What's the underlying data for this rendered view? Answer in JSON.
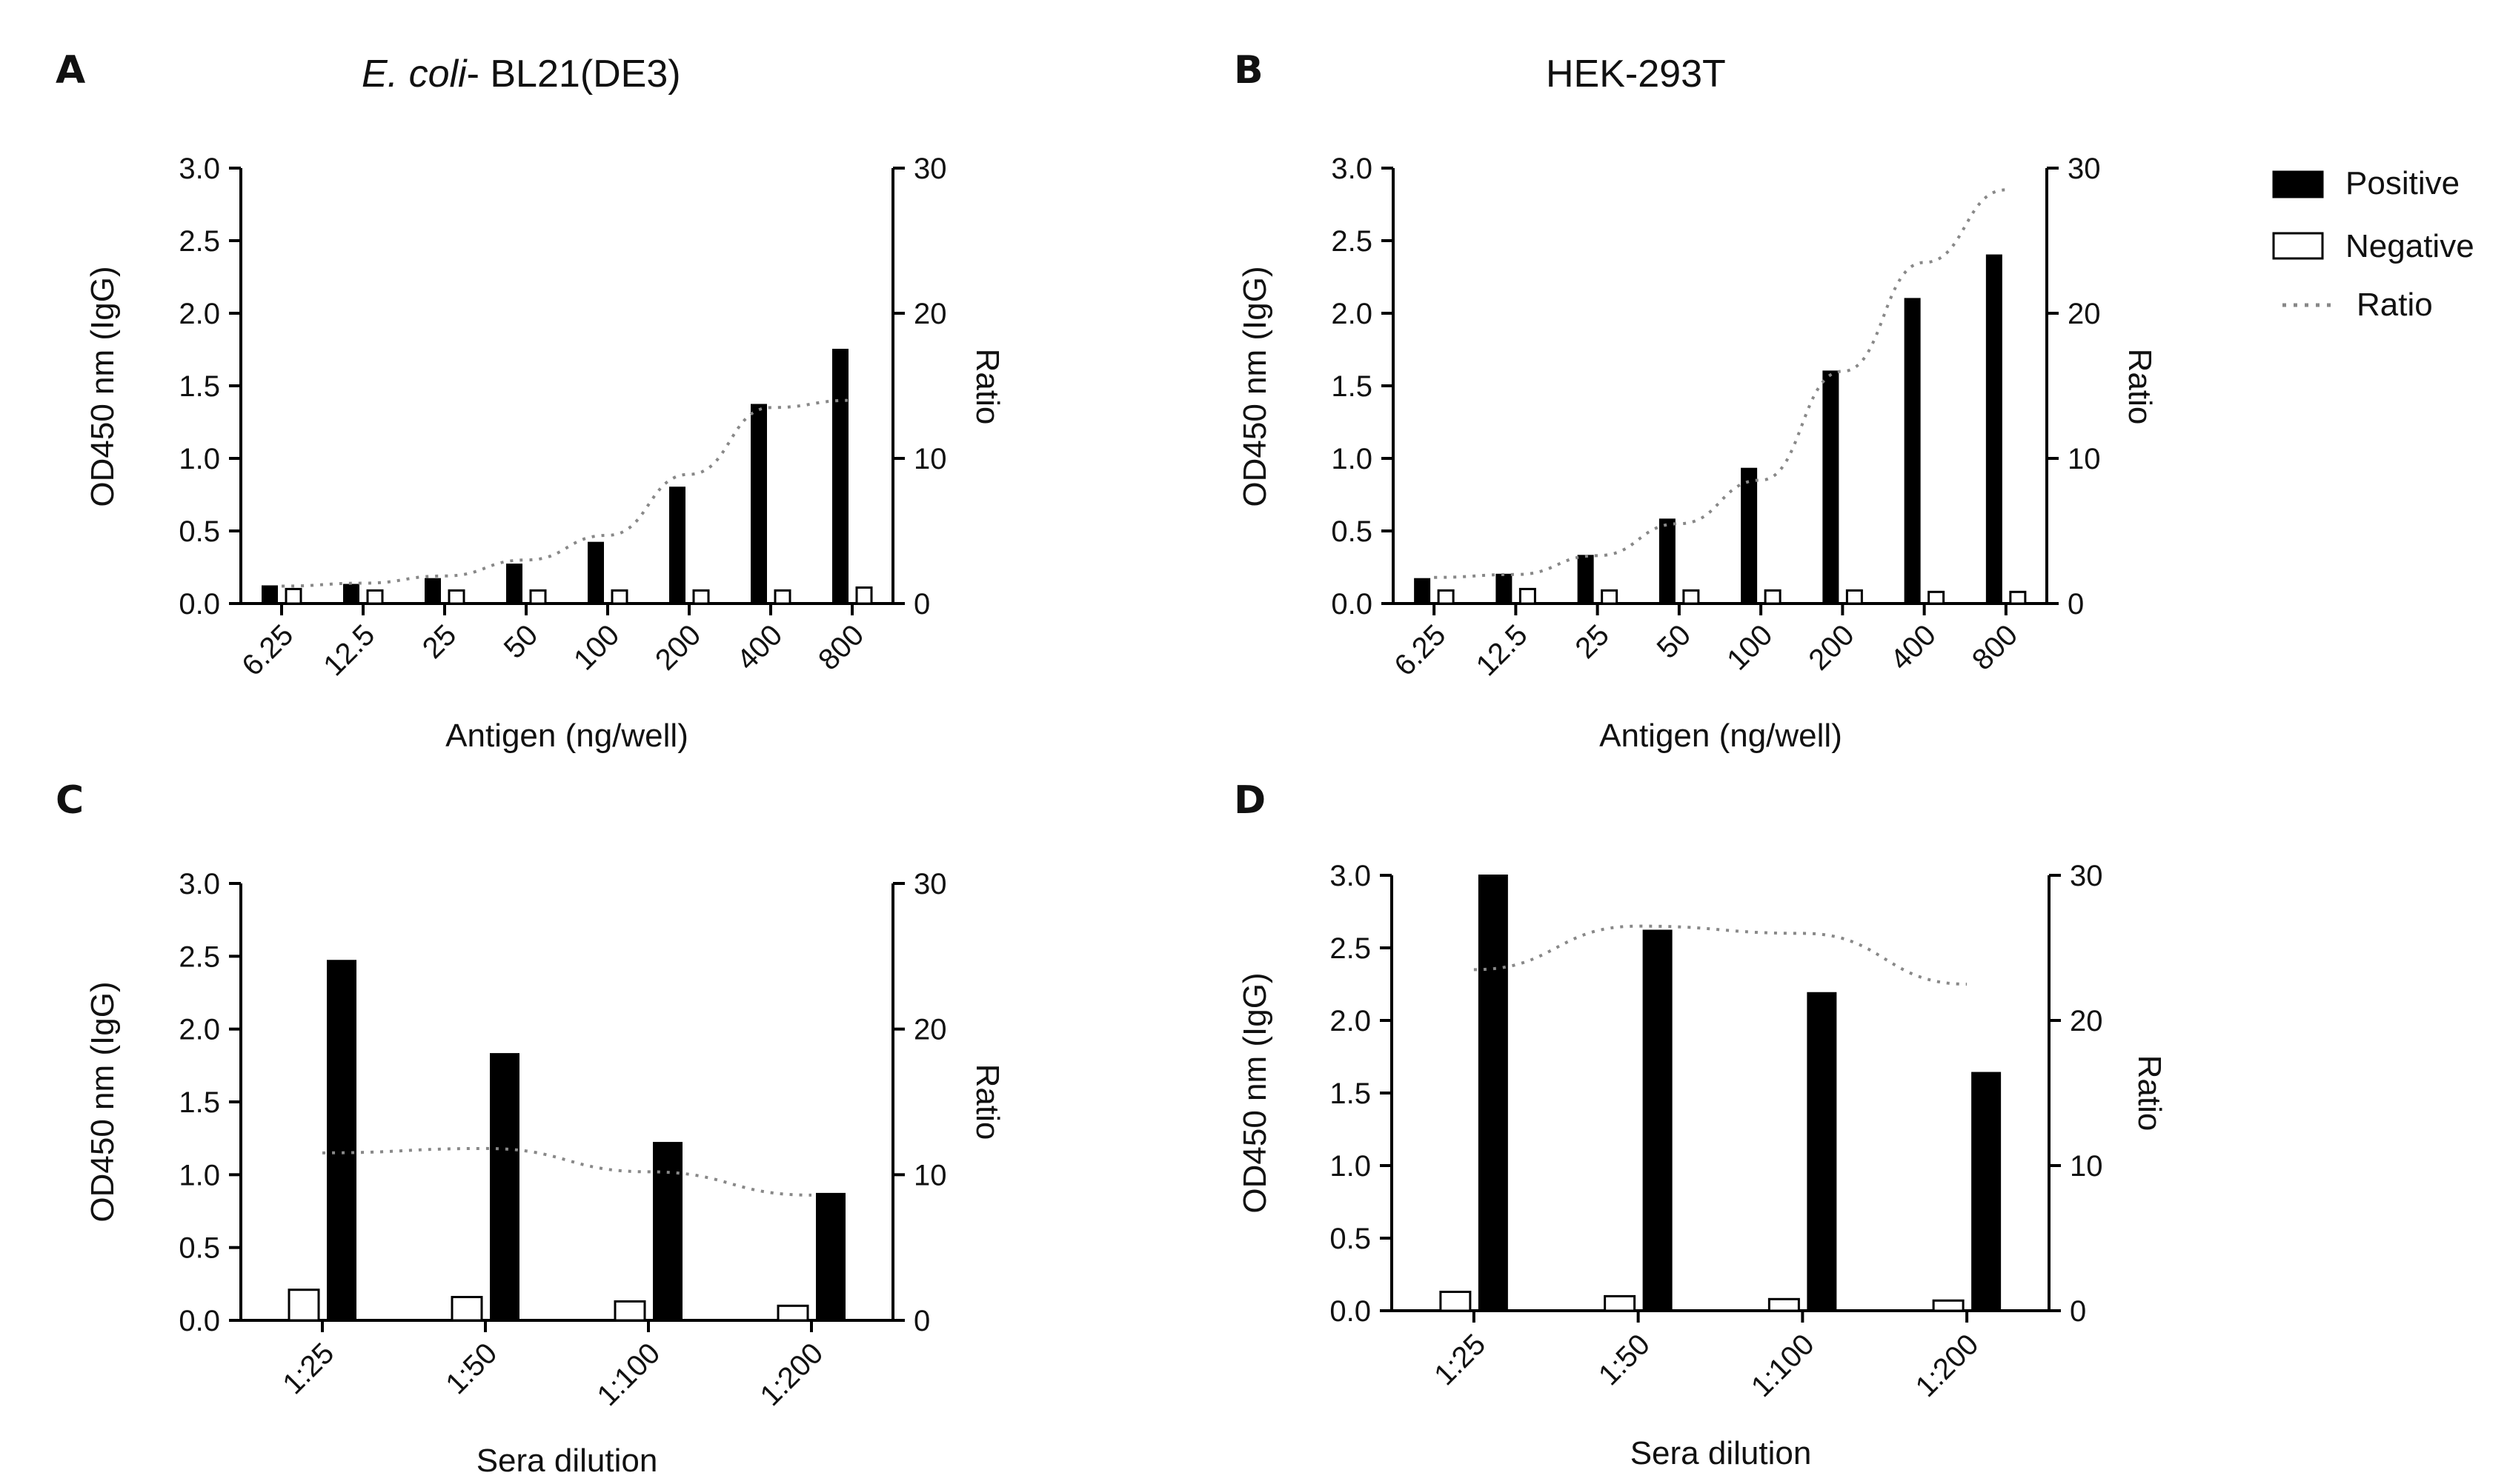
{
  "legend": {
    "positive": "Positive",
    "negative": "Negative",
    "ratio": "Ratio",
    "colors": {
      "positive": "#000000",
      "negative": "#ffffff",
      "ratio": "#888888"
    }
  },
  "chart_data": [
    {
      "panel": "A",
      "title_italic": "E. coli",
      "title": "- BL21(DE3)",
      "type": "bar",
      "xlabel": "Antigen (ng/well)",
      "ylabel": "OD450 nm (IgG)",
      "y2label": "Ratio",
      "ylim": [
        0,
        3.0
      ],
      "y2lim": [
        0,
        30
      ],
      "yticks": [
        "0.0",
        "0.5",
        "1.0",
        "1.5",
        "2.0",
        "2.5",
        "3.0"
      ],
      "y2ticks": [
        "0",
        "10",
        "20",
        "30"
      ],
      "categories": [
        "6.25",
        "12.5",
        "25",
        "50",
        "100",
        "200",
        "400",
        "800"
      ],
      "series": [
        {
          "name": "Positive",
          "values": [
            0.12,
            0.13,
            0.17,
            0.27,
            0.42,
            0.8,
            1.37,
            1.75
          ]
        },
        {
          "name": "Negative",
          "values": [
            0.1,
            0.09,
            0.09,
            0.09,
            0.09,
            0.09,
            0.09,
            0.11
          ]
        },
        {
          "name": "Ratio",
          "axis": "right",
          "values": [
            1.2,
            1.4,
            1.9,
            3.0,
            4.7,
            8.9,
            13.5,
            14.0
          ]
        }
      ],
      "negative_first": false
    },
    {
      "panel": "B",
      "title": "HEK-293T",
      "type": "bar",
      "xlabel": "Antigen (ng/well)",
      "ylabel": "OD450 nm (IgG)",
      "y2label": "Ratio",
      "ylim": [
        0,
        3.0
      ],
      "y2lim": [
        0,
        30
      ],
      "yticks": [
        "0.0",
        "0.5",
        "1.0",
        "1.5",
        "2.0",
        "2.5",
        "3.0"
      ],
      "y2ticks": [
        "0",
        "10",
        "20",
        "30"
      ],
      "categories": [
        "6.25",
        "12.5",
        "25",
        "50",
        "100",
        "200",
        "400",
        "800"
      ],
      "series": [
        {
          "name": "Positive",
          "values": [
            0.17,
            0.2,
            0.33,
            0.58,
            0.93,
            1.6,
            2.1,
            2.4
          ]
        },
        {
          "name": "Negative",
          "values": [
            0.09,
            0.1,
            0.09,
            0.09,
            0.09,
            0.09,
            0.08,
            0.08
          ]
        },
        {
          "name": "Ratio",
          "axis": "right",
          "values": [
            1.8,
            2.0,
            3.3,
            5.5,
            8.5,
            16.0,
            23.5,
            28.5
          ]
        }
      ],
      "negative_first": false
    },
    {
      "panel": "C",
      "title": "",
      "type": "bar",
      "xlabel": "Sera dilution",
      "ylabel": "OD450 nm (IgG)",
      "y2label": "Ratio",
      "ylim": [
        0,
        3.0
      ],
      "y2lim": [
        0,
        30
      ],
      "yticks": [
        "0.0",
        "0.5",
        "1.0",
        "1.5",
        "2.0",
        "2.5",
        "3.0"
      ],
      "y2ticks": [
        "0",
        "10",
        "20",
        "30"
      ],
      "categories": [
        "1:25",
        "1:50",
        "1:100",
        "1:200"
      ],
      "series": [
        {
          "name": "Positive",
          "values": [
            2.47,
            1.83,
            1.22,
            0.87
          ]
        },
        {
          "name": "Negative",
          "values": [
            0.21,
            0.16,
            0.13,
            0.1
          ]
        },
        {
          "name": "Ratio",
          "axis": "right",
          "values": [
            11.5,
            11.8,
            10.2,
            8.6
          ]
        }
      ],
      "negative_first": true
    },
    {
      "panel": "D",
      "title": "",
      "type": "bar",
      "xlabel": "Sera dilution",
      "ylabel": "OD450 nm (IgG)",
      "y2label": "Ratio",
      "ylim": [
        0,
        3.0
      ],
      "y2lim": [
        0,
        30
      ],
      "yticks": [
        "0.0",
        "0.5",
        "1.0",
        "1.5",
        "2.0",
        "2.5",
        "3.0"
      ],
      "y2ticks": [
        "0",
        "10",
        "20",
        "30"
      ],
      "categories": [
        "1:25",
        "1:50",
        "1:100",
        "1:200"
      ],
      "series": [
        {
          "name": "Positive",
          "values": [
            3.0,
            2.62,
            2.19,
            1.64
          ]
        },
        {
          "name": "Negative",
          "values": [
            0.13,
            0.1,
            0.08,
            0.07
          ]
        },
        {
          "name": "Ratio",
          "axis": "right",
          "values": [
            23.5,
            26.5,
            26.0,
            22.5
          ]
        }
      ],
      "negative_first": true
    }
  ]
}
